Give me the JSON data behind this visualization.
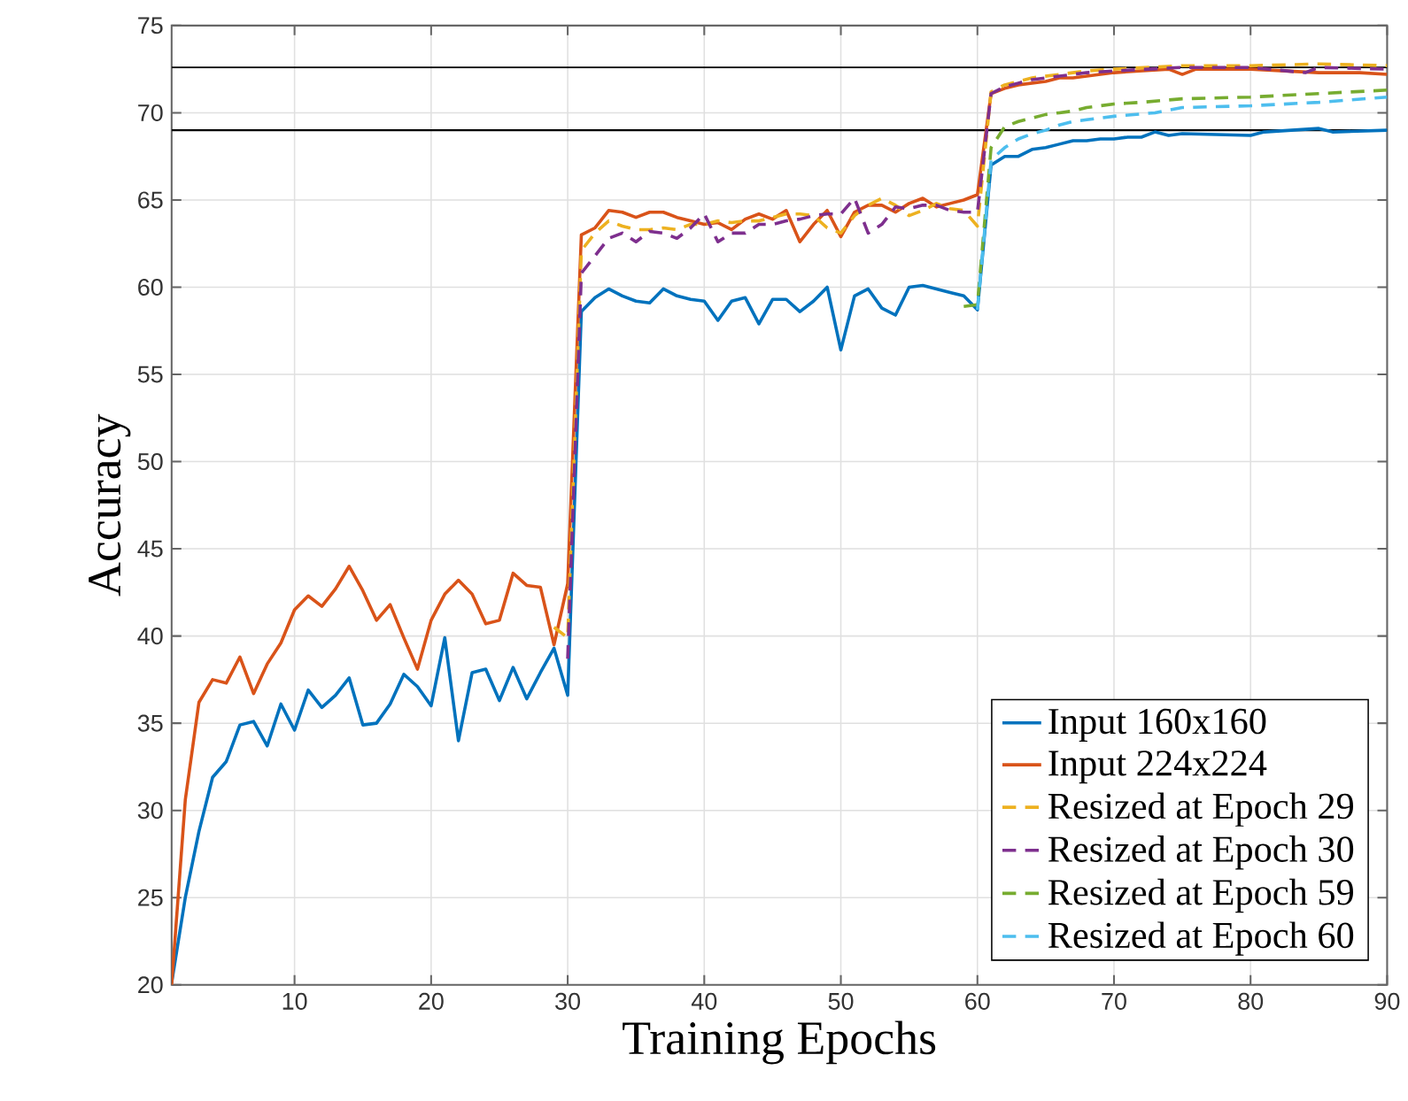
{
  "chart_data": {
    "type": "line",
    "xlabel": "Training Epochs",
    "ylabel": "Accuracy",
    "xlim": [
      1,
      90
    ],
    "ylim": [
      20,
      75
    ],
    "xticks": [
      10,
      20,
      30,
      40,
      50,
      60,
      70,
      80,
      90
    ],
    "yticks": [
      20,
      25,
      30,
      35,
      40,
      45,
      50,
      55,
      60,
      65,
      70,
      75
    ],
    "grid": true,
    "legend": "bottom right",
    "marker": "none",
    "ref_lines": [
      {
        "axis": "y",
        "value": 72.6,
        "color": "#000000"
      },
      {
        "axis": "y",
        "value": 69.0,
        "color": "#000000"
      }
    ],
    "series": [
      {
        "name": "Input 160x160",
        "color": "#0072bd",
        "line_style": "solid",
        "x": [
          1,
          2,
          3,
          4,
          5,
          6,
          7,
          8,
          9,
          10,
          11,
          12,
          13,
          14,
          15,
          16,
          17,
          18,
          19,
          20,
          21,
          22,
          23,
          24,
          25,
          26,
          27,
          28,
          29,
          30,
          31,
          32,
          33,
          34,
          35,
          36,
          37,
          38,
          39,
          40,
          41,
          42,
          43,
          44,
          45,
          46,
          47,
          48,
          49,
          50,
          51,
          52,
          53,
          54,
          55,
          56,
          57,
          58,
          59,
          60,
          61,
          62,
          63,
          64,
          65,
          66,
          67,
          68,
          69,
          70,
          71,
          72,
          73,
          74,
          75,
          80,
          81,
          85,
          86,
          90
        ],
        "values": [
          20.1,
          25.0,
          28.8,
          31.9,
          32.8,
          34.9,
          35.1,
          33.7,
          36.1,
          34.6,
          36.9,
          35.9,
          36.6,
          37.6,
          34.9,
          35.0,
          36.1,
          37.8,
          37.1,
          36.0,
          39.9,
          34.0,
          37.9,
          38.1,
          36.3,
          38.2,
          36.4,
          37.9,
          39.3,
          36.6,
          58.6,
          59.4,
          59.9,
          59.5,
          59.2,
          59.1,
          59.9,
          59.5,
          59.3,
          59.2,
          58.1,
          59.2,
          59.4,
          57.9,
          59.3,
          59.3,
          58.6,
          59.2,
          60.0,
          56.4,
          59.5,
          59.9,
          58.8,
          58.4,
          60.0,
          60.1,
          59.9,
          59.7,
          59.5,
          58.7,
          67.0,
          67.5,
          67.5,
          67.9,
          68.0,
          68.2,
          68.4,
          68.4,
          68.5,
          68.5,
          68.6,
          68.6,
          68.9,
          68.7,
          68.8,
          68.7,
          68.9,
          69.1,
          68.9,
          69.0
        ]
      },
      {
        "name": "Input 224x224",
        "color": "#d95319",
        "line_style": "solid",
        "x": [
          1,
          2,
          3,
          4,
          5,
          6,
          7,
          8,
          9,
          10,
          11,
          12,
          13,
          14,
          15,
          16,
          17,
          18,
          19,
          20,
          21,
          22,
          23,
          24,
          25,
          26,
          27,
          28,
          29,
          30,
          31,
          32,
          33,
          34,
          35,
          36,
          37,
          38,
          39,
          40,
          41,
          42,
          43,
          44,
          45,
          46,
          47,
          48,
          49,
          50,
          51,
          52,
          53,
          54,
          55,
          56,
          57,
          58,
          59,
          60,
          61,
          62,
          63,
          64,
          65,
          66,
          67,
          68,
          69,
          70,
          72,
          74,
          75,
          76,
          80,
          85,
          88,
          90
        ],
        "values": [
          20.0,
          30.6,
          36.2,
          37.5,
          37.3,
          38.8,
          36.7,
          38.4,
          39.6,
          41.5,
          42.3,
          41.7,
          42.7,
          44.0,
          42.6,
          40.9,
          41.8,
          39.9,
          38.1,
          40.9,
          42.4,
          43.2,
          42.4,
          40.7,
          40.9,
          43.6,
          42.9,
          42.8,
          39.5,
          43.0,
          63.0,
          63.4,
          64.4,
          64.3,
          64.0,
          64.3,
          64.3,
          64.0,
          63.8,
          63.6,
          63.7,
          63.3,
          63.9,
          64.2,
          63.9,
          64.4,
          62.6,
          63.6,
          64.4,
          62.9,
          64.3,
          64.7,
          64.7,
          64.3,
          64.8,
          65.1,
          64.6,
          64.8,
          65.0,
          65.3,
          71.1,
          71.4,
          71.6,
          71.7,
          71.8,
          72.0,
          72.0,
          72.1,
          72.2,
          72.3,
          72.4,
          72.5,
          72.2,
          72.5,
          72.5,
          72.3,
          72.3,
          72.2
        ]
      },
      {
        "name": "Resized at Epoch 29",
        "color": "#edb120",
        "line_style": "dashed",
        "x": [
          29,
          30,
          31,
          32,
          33,
          34,
          35,
          36,
          37,
          38,
          39,
          40,
          41,
          42,
          43,
          44,
          45,
          46,
          47,
          48,
          49,
          50,
          51,
          52,
          53,
          54,
          55,
          56,
          57,
          58,
          59,
          60,
          61,
          62,
          63,
          64,
          66,
          68,
          70,
          75,
          80,
          85,
          90
        ],
        "values": [
          40.5,
          39.9,
          62.1,
          63.1,
          63.8,
          63.5,
          63.3,
          63.3,
          63.4,
          63.3,
          63.6,
          63.6,
          63.8,
          63.7,
          63.8,
          63.8,
          64.0,
          64.2,
          64.2,
          64.1,
          63.4,
          63.1,
          64.1,
          64.7,
          65.1,
          64.7,
          64.1,
          64.4,
          64.8,
          64.5,
          64.4,
          63.5,
          71.2,
          71.6,
          71.8,
          72.0,
          72.2,
          72.4,
          72.5,
          72.7,
          72.7,
          72.8,
          72.7
        ]
      },
      {
        "name": "Resized at Epoch 30",
        "color": "#7e2f8e",
        "line_style": "dashed",
        "x": [
          30,
          31,
          32,
          33,
          34,
          35,
          36,
          37,
          38,
          39,
          40,
          41,
          42,
          43,
          44,
          45,
          46,
          47,
          48,
          49,
          50,
          51,
          52,
          53,
          54,
          55,
          56,
          57,
          58,
          59,
          60,
          61,
          62,
          63,
          64,
          66,
          68,
          70,
          75,
          80,
          84,
          85,
          90
        ],
        "values": [
          38.7,
          60.8,
          61.8,
          62.8,
          63.1,
          62.6,
          63.2,
          63.1,
          62.8,
          63.4,
          64.2,
          62.6,
          63.1,
          63.1,
          63.6,
          63.6,
          63.8,
          63.9,
          64.1,
          64.2,
          64.2,
          65.1,
          63.1,
          63.6,
          64.6,
          64.5,
          64.7,
          64.7,
          64.4,
          64.3,
          64.3,
          71.1,
          71.5,
          71.7,
          71.9,
          72.1,
          72.3,
          72.4,
          72.6,
          72.6,
          72.3,
          72.6,
          72.5
        ]
      },
      {
        "name": "Resized at Epoch 59",
        "color": "#77ac30",
        "line_style": "dashed",
        "x": [
          59,
          60,
          61,
          62,
          63,
          64,
          65,
          66,
          67,
          68,
          69,
          70,
          72,
          75,
          80,
          85,
          90
        ],
        "values": [
          58.9,
          59.0,
          68.0,
          69.2,
          69.5,
          69.7,
          69.9,
          70.0,
          70.1,
          70.3,
          70.4,
          70.5,
          70.6,
          70.8,
          70.9,
          71.1,
          71.3
        ]
      },
      {
        "name": "Resized at Epoch 60",
        "color": "#4dbeee",
        "line_style": "dashed",
        "x": [
          60,
          61,
          62,
          63,
          64,
          65,
          66,
          67,
          68,
          70,
          73,
          75,
          80,
          85,
          90
        ],
        "values": [
          58.7,
          67.3,
          68.0,
          68.5,
          68.8,
          69.0,
          69.3,
          69.5,
          69.6,
          69.8,
          70.0,
          70.3,
          70.4,
          70.6,
          70.9
        ]
      }
    ]
  }
}
